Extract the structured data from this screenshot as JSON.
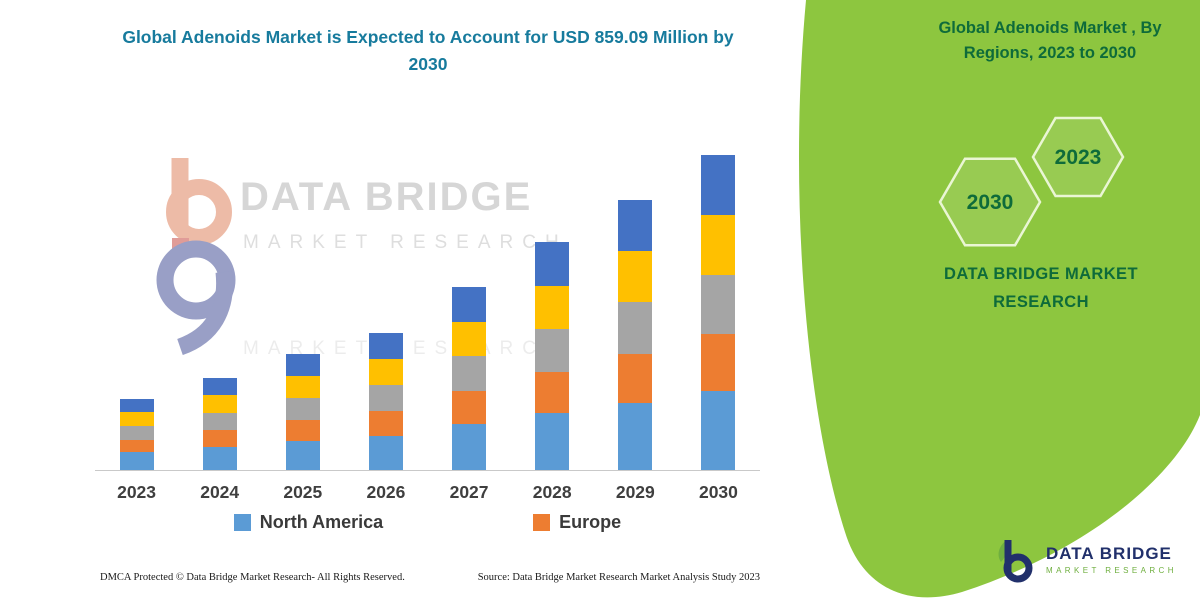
{
  "page": {
    "left_title": "Global Adenoids Market is Expected to Account for USD 859.09 Million by 2030",
    "right_panel": {
      "title": "Global Adenoids Market , By Regions, 2023 to 2030",
      "hexagon_years": [
        "2030",
        "2023"
      ],
      "brand_line1": "DATA BRIDGE MARKET",
      "brand_line2": "RESEARCH"
    },
    "watermark": {
      "line1": "DATA BRIDGE",
      "line2": "MARKET RESEARCH"
    },
    "footer": {
      "dmca": "DMCA Protected © Data Bridge Market Research-  All Rights Reserved.",
      "source": "Source: Data Bridge Market Research  Market Analysis Study 2023"
    },
    "logo": {
      "name": "DATA BRIDGE",
      "sub": "MARKET RESEARCH"
    },
    "colors": {
      "green_panel": "#8DC63F",
      "left_title": "#177B9D",
      "dark_green": "#0E6B3A"
    }
  },
  "chart_data": {
    "type": "bar",
    "stacked": true,
    "title": "Global Adenoids Market is Expected to Account for USD 859.09 Million by 2030",
    "categories": [
      "2023",
      "2024",
      "2025",
      "2026",
      "2027",
      "2028",
      "2029",
      "2030"
    ],
    "series": [
      {
        "name": "North America",
        "color": "#5B9BD5",
        "values": [
          48,
          63,
          79,
          93,
          125,
          155,
          184,
          215
        ]
      },
      {
        "name": "Europe",
        "color": "#ED7D31",
        "values": [
          35,
          45,
          57,
          67,
          90,
          112,
          133,
          155
        ]
      },
      {
        "name": "Unlabeled (gray)",
        "color": "#A5A5A5",
        "values": [
          37,
          48,
          60,
          71,
          95,
          118,
          140,
          163
        ]
      },
      {
        "name": "Unlabeled (gold)",
        "color": "#FFC000",
        "values": [
          37,
          48,
          60,
          71,
          95,
          118,
          140,
          163
        ]
      },
      {
        "name": "Unlabeled (dark blue)",
        "color": "#4472C4",
        "values": [
          38,
          48,
          61,
          72,
          94,
          118,
          140,
          163
        ]
      }
    ],
    "totals": [
      195,
      252,
      317,
      374,
      499,
      621,
      737,
      859
    ],
    "ylim": [
      0,
      900
    ],
    "unit": "USD Million",
    "legend": [
      "North America",
      "Europe"
    ],
    "legend_position": "bottom",
    "grid": false
  }
}
